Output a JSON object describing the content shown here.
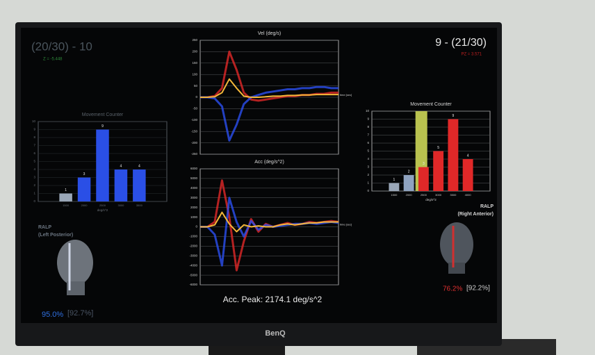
{
  "screen": {
    "left_score": "(20/30) - 10",
    "left_z": "Z = -5.448",
    "right_score": "9 - (21/30)",
    "right_z": "PZ = 3.571",
    "acc_peak": "Acc. Peak: 2174.1  deg/s^2",
    "brand": "BenQ",
    "left_head": {
      "label": "RALP",
      "sub": "(Left Posterior)",
      "pct": "95.0%",
      "ref": "[92.7%]"
    },
    "right_head": {
      "label": "RALP",
      "sub": "(Right Anterior)",
      "pct": "76.2%",
      "ref": "[92.2%]"
    }
  },
  "chart_data": [
    {
      "type": "bar",
      "title": "Movement Counter",
      "xlabel": "deg/s^2",
      "categories": [
        "1500",
        "2000",
        "2500",
        "3000",
        "3500"
      ],
      "values": [
        1,
        3,
        9,
        4,
        4
      ],
      "colors": [
        "#9aa7b8",
        "#2a4fe6",
        "#2a4fe6",
        "#2a4fe6",
        "#2a4fe6"
      ],
      "ylim": [
        0,
        10
      ],
      "yticks": [
        0,
        1,
        2,
        3,
        4,
        5,
        6,
        7,
        8,
        9,
        10
      ],
      "grid": true
    },
    {
      "type": "line",
      "title": "Vel (deg/s)",
      "xlabel": "time [sec]",
      "series": [
        {
          "color": "#e02828",
          "values": [
            0,
            0,
            5,
            40,
            200,
            120,
            20,
            -10,
            -15,
            -10,
            -5,
            0,
            5,
            5,
            10,
            10,
            15,
            15,
            20,
            20
          ]
        },
        {
          "color": "#2b4ff0",
          "values": [
            0,
            0,
            -5,
            -40,
            -190,
            -120,
            -30,
            0,
            10,
            20,
            25,
            30,
            35,
            35,
            40,
            40,
            45,
            45,
            40,
            40
          ]
        },
        {
          "color": "#f5b83a",
          "values": [
            0,
            0,
            2,
            20,
            80,
            40,
            5,
            0,
            0,
            2,
            5,
            5,
            8,
            8,
            10,
            10,
            12,
            12,
            12,
            12
          ]
        }
      ],
      "ylim": [
        -250,
        250
      ],
      "yticks": [
        -250,
        -200,
        -150,
        -100,
        -50,
        0,
        50,
        100,
        150,
        200,
        250
      ],
      "grid": true
    },
    {
      "type": "line",
      "title": "Acc (deg/s^2)",
      "xlabel": "time [sec]",
      "series": [
        {
          "color": "#e02828",
          "values": [
            0,
            0,
            500,
            4800,
            1000,
            -4500,
            -1500,
            800,
            -500,
            300,
            0,
            200,
            400,
            200,
            300,
            500,
            400,
            500,
            600,
            500
          ]
        },
        {
          "color": "#2b4ff0",
          "values": [
            0,
            0,
            -800,
            -4000,
            3000,
            500,
            -1000,
            600,
            -300,
            200,
            0,
            100,
            200,
            300,
            300,
            400,
            300,
            400,
            500,
            400
          ]
        },
        {
          "color": "#f5b83a",
          "values": [
            0,
            0,
            200,
            1500,
            300,
            -500,
            200,
            0,
            100,
            0,
            0,
            200,
            300,
            200,
            300,
            400,
            400,
            500,
            500,
            500
          ]
        }
      ],
      "ylim": [
        -6000,
        6000
      ],
      "yticks": [
        -6000,
        -5000,
        -4000,
        -3000,
        -2000,
        -1000,
        0,
        1000,
        2000,
        3000,
        4000,
        5000,
        6000
      ],
      "grid": true
    },
    {
      "type": "bar",
      "title": "Movement Counter",
      "xlabel": "deg/s^2",
      "categories": [
        "1500",
        "2000",
        "2500",
        "3000",
        "3500",
        "4000"
      ],
      "values": [
        1,
        2,
        3,
        5,
        9,
        4
      ],
      "colors": [
        "#9aa7b8",
        "#8fa3c0",
        "#e02828",
        "#e02828",
        "#e02828",
        "#e02828"
      ],
      "highlight_index": 2,
      "highlight_color": "#b9c24f",
      "ylim": [
        0,
        10
      ],
      "yticks": [
        0,
        1,
        2,
        3,
        4,
        5,
        6,
        7,
        8,
        9,
        10
      ],
      "grid": true
    }
  ]
}
